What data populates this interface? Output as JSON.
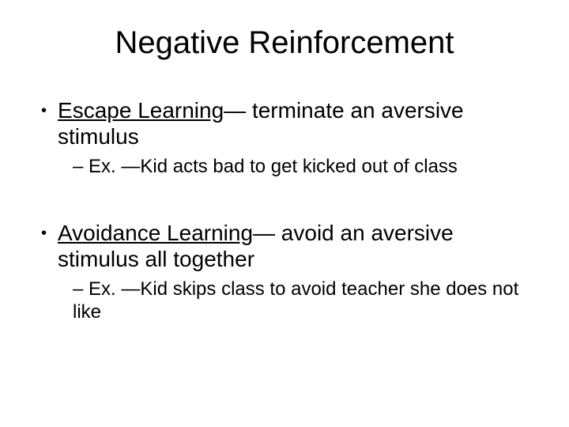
{
  "background_color": "#ffffff",
  "text_color": "#000000",
  "font_family": "Arial",
  "title": {
    "text": "Negative Reinforcement",
    "fontsize": 40,
    "align": "center"
  },
  "bullets": [
    {
      "level": 1,
      "term": "Escape Learning",
      "rest": "— terminate an aversive stimulus",
      "fontsize": 28
    },
    {
      "level": 2,
      "text": "– Ex. —Kid acts bad to get kicked out of class",
      "fontsize": 24
    },
    {
      "level": 0,
      "spacer": true
    },
    {
      "level": 1,
      "term": "Avoidance Learning",
      "rest": "— avoid an aversive stimulus all together",
      "fontsize": 28
    },
    {
      "level": 2,
      "text": "– Ex. —Kid skips class to avoid teacher she does not like",
      "fontsize": 24
    }
  ]
}
